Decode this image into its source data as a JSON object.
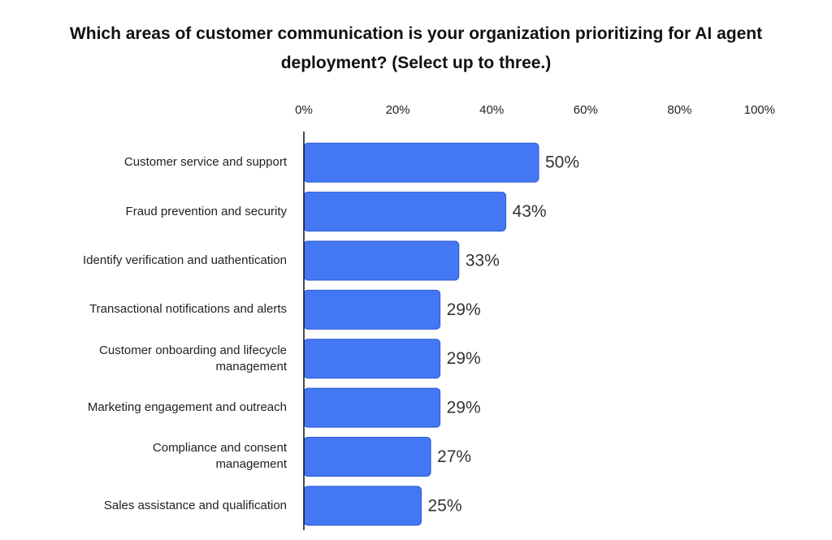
{
  "chart_data": {
    "type": "bar",
    "orientation": "horizontal",
    "title": "Which areas of customer communication is your organization prioritizing for AI agent deployment? (Select up to three.)",
    "categories": [
      "Customer service and support",
      "Fraud prevention and security",
      "Identify verification and uathentication",
      "Transactional notifications and alerts",
      "Customer onboarding and lifecycle\nmanagement",
      "Marketing engagement and outreach",
      "Compliance and consent\nmanagement",
      "Sales assistance and qualification"
    ],
    "values": [
      50,
      43,
      33,
      29,
      29,
      29,
      27,
      25
    ],
    "value_labels": [
      "50%",
      "43%",
      "33%",
      "29%",
      "29%",
      "29%",
      "27%",
      "25%"
    ],
    "color": "#4477f4",
    "xlim": [
      0,
      100
    ],
    "xticks": [
      {
        "value": 0,
        "label": "0%"
      },
      {
        "value": 20,
        "label": "20%"
      },
      {
        "value": 40,
        "label": "40%"
      },
      {
        "value": 60,
        "label": "60%"
      },
      {
        "value": 80,
        "label": "80%"
      },
      {
        "value": 100,
        "label": "100%"
      }
    ],
    "grid": false
  }
}
